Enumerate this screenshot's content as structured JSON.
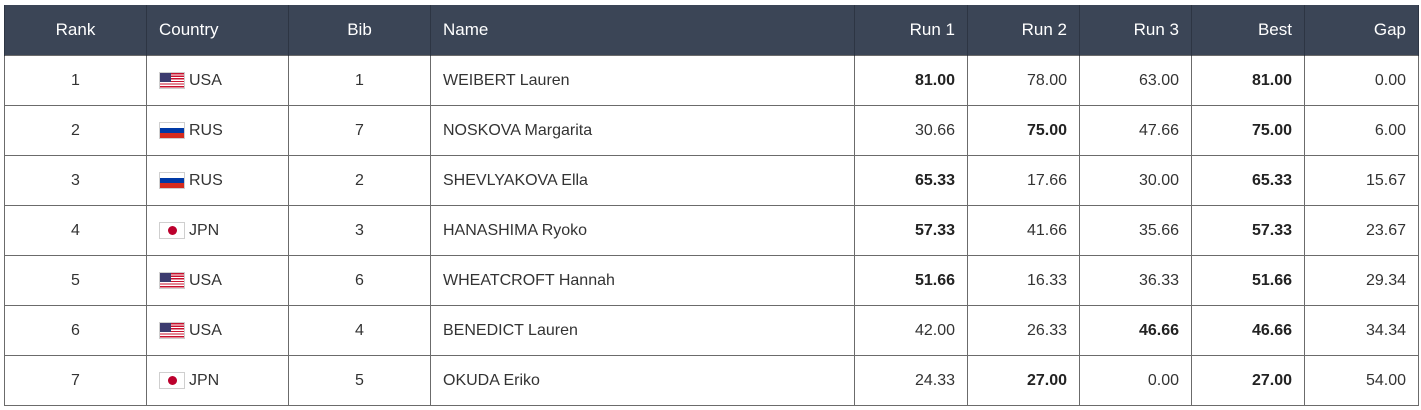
{
  "headers": {
    "rank": "Rank",
    "country": "Country",
    "bib": "Bib",
    "name": "Name",
    "run1": "Run 1",
    "run2": "Run 2",
    "run3": "Run 3",
    "best": "Best",
    "gap": "Gap"
  },
  "rows": [
    {
      "rank": "1",
      "country": "USA",
      "flag": "usa-flag-icon",
      "bib": "1",
      "name": "WEIBERT Lauren",
      "run1": "81.00",
      "run2": "78.00",
      "run3": "63.00",
      "best": "81.00",
      "gap": "0.00",
      "best_run": 1
    },
    {
      "rank": "2",
      "country": "RUS",
      "flag": "rus-flag-icon",
      "bib": "7",
      "name": "NOSKOVA Margarita",
      "run1": "30.66",
      "run2": "75.00",
      "run3": "47.66",
      "best": "75.00",
      "gap": "6.00",
      "best_run": 2
    },
    {
      "rank": "3",
      "country": "RUS",
      "flag": "rus-flag-icon",
      "bib": "2",
      "name": "SHEVLYAKOVA Ella",
      "run1": "65.33",
      "run2": "17.66",
      "run3": "30.00",
      "best": "65.33",
      "gap": "15.67",
      "best_run": 1
    },
    {
      "rank": "4",
      "country": "JPN",
      "flag": "jpn-flag-icon",
      "bib": "3",
      "name": "HANASHIMA Ryoko",
      "run1": "57.33",
      "run2": "41.66",
      "run3": "35.66",
      "best": "57.33",
      "gap": "23.67",
      "best_run": 1
    },
    {
      "rank": "5",
      "country": "USA",
      "flag": "usa-flag-icon",
      "bib": "6",
      "name": "WHEATCROFT Hannah",
      "run1": "51.66",
      "run2": "16.33",
      "run3": "36.33",
      "best": "51.66",
      "gap": "29.34",
      "best_run": 1
    },
    {
      "rank": "6",
      "country": "USA",
      "flag": "usa-flag-icon",
      "bib": "4",
      "name": "BENEDICT Lauren",
      "run1": "42.00",
      "run2": "26.33",
      "run3": "46.66",
      "best": "46.66",
      "gap": "34.34",
      "best_run": 3
    },
    {
      "rank": "7",
      "country": "JPN",
      "flag": "jpn-flag-icon",
      "bib": "5",
      "name": "OKUDA Eriko",
      "run1": "24.33",
      "run2": "27.00",
      "run3": "0.00",
      "best": "27.00",
      "gap": "54.00",
      "best_run": 2
    }
  ]
}
